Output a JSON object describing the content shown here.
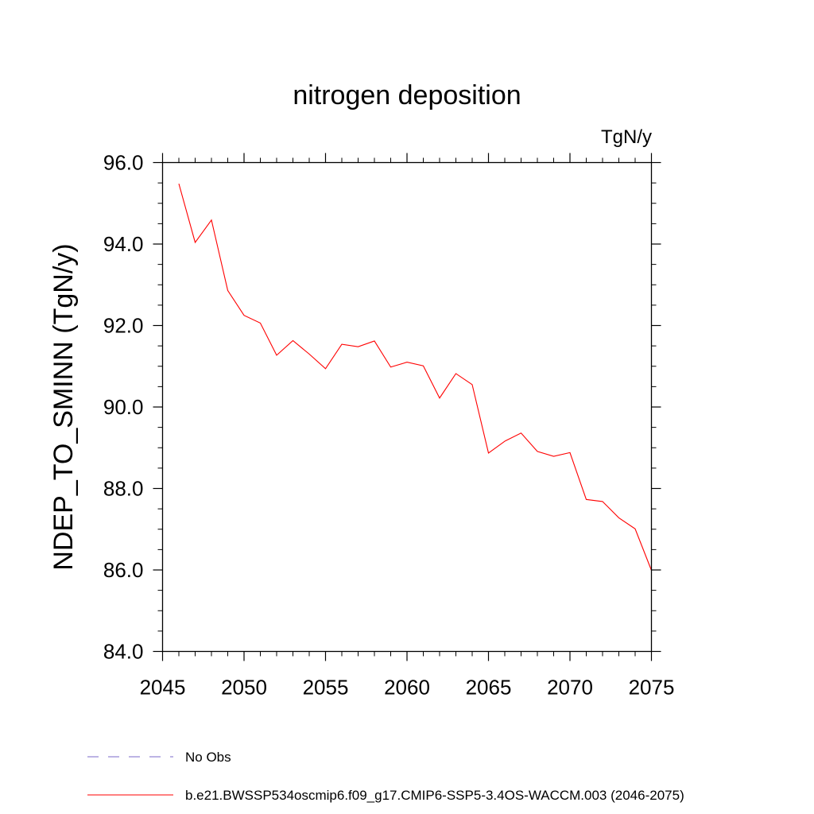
{
  "chart_data": {
    "type": "line",
    "title": "nitrogen deposition",
    "units_label": "TgN/y",
    "ylabel": "NDEP_TO_SMINN  (TgN/y)",
    "xlabel": "",
    "xlim": [
      2045,
      2075
    ],
    "ylim": [
      84.0,
      96.0
    ],
    "x_ticks": [
      2045,
      2050,
      2055,
      2060,
      2065,
      2070,
      2075
    ],
    "x_tick_labels": [
      "2045",
      "2050",
      "2055",
      "2060",
      "2065",
      "2070",
      "2075"
    ],
    "y_ticks": [
      84,
      86,
      88,
      90,
      92,
      94,
      96
    ],
    "y_tick_labels": [
      "84.0",
      "86.0",
      "88.0",
      "90.0",
      "92.0",
      "94.0",
      "96.0"
    ],
    "grid": false,
    "legend_position": "bottom",
    "series": [
      {
        "name": "b.e21.BWSSP534oscmip6.f09_g17.CMIP6-SSP5-3.4OS-WACCM.003 (2046-2075)",
        "color": "#ff0000",
        "dash": "solid",
        "x": [
          2046,
          2047,
          2048,
          2049,
          2050,
          2051,
          2052,
          2053,
          2054,
          2055,
          2056,
          2057,
          2058,
          2059,
          2060,
          2061,
          2062,
          2063,
          2064,
          2065,
          2066,
          2067,
          2068,
          2069,
          2070,
          2071,
          2072,
          2073,
          2074,
          2075
        ],
        "y": [
          95.48,
          94.04,
          94.59,
          92.86,
          92.25,
          92.06,
          91.27,
          91.63,
          91.3,
          90.94,
          91.54,
          91.48,
          91.62,
          90.98,
          91.1,
          91.01,
          90.22,
          90.82,
          90.55,
          88.87,
          89.16,
          89.36,
          88.91,
          88.79,
          88.88,
          87.73,
          87.68,
          87.28,
          87.01,
          85.99
        ]
      }
    ],
    "legend": [
      {
        "label": "No Obs",
        "color": "#7b68c8",
        "dash": "dashed"
      },
      {
        "label": "b.e21.BWSSP534oscmip6.f09_g17.CMIP6-SSP5-3.4OS-WACCM.003 (2046-2075)",
        "color": "#ff0000",
        "dash": "solid"
      }
    ]
  }
}
